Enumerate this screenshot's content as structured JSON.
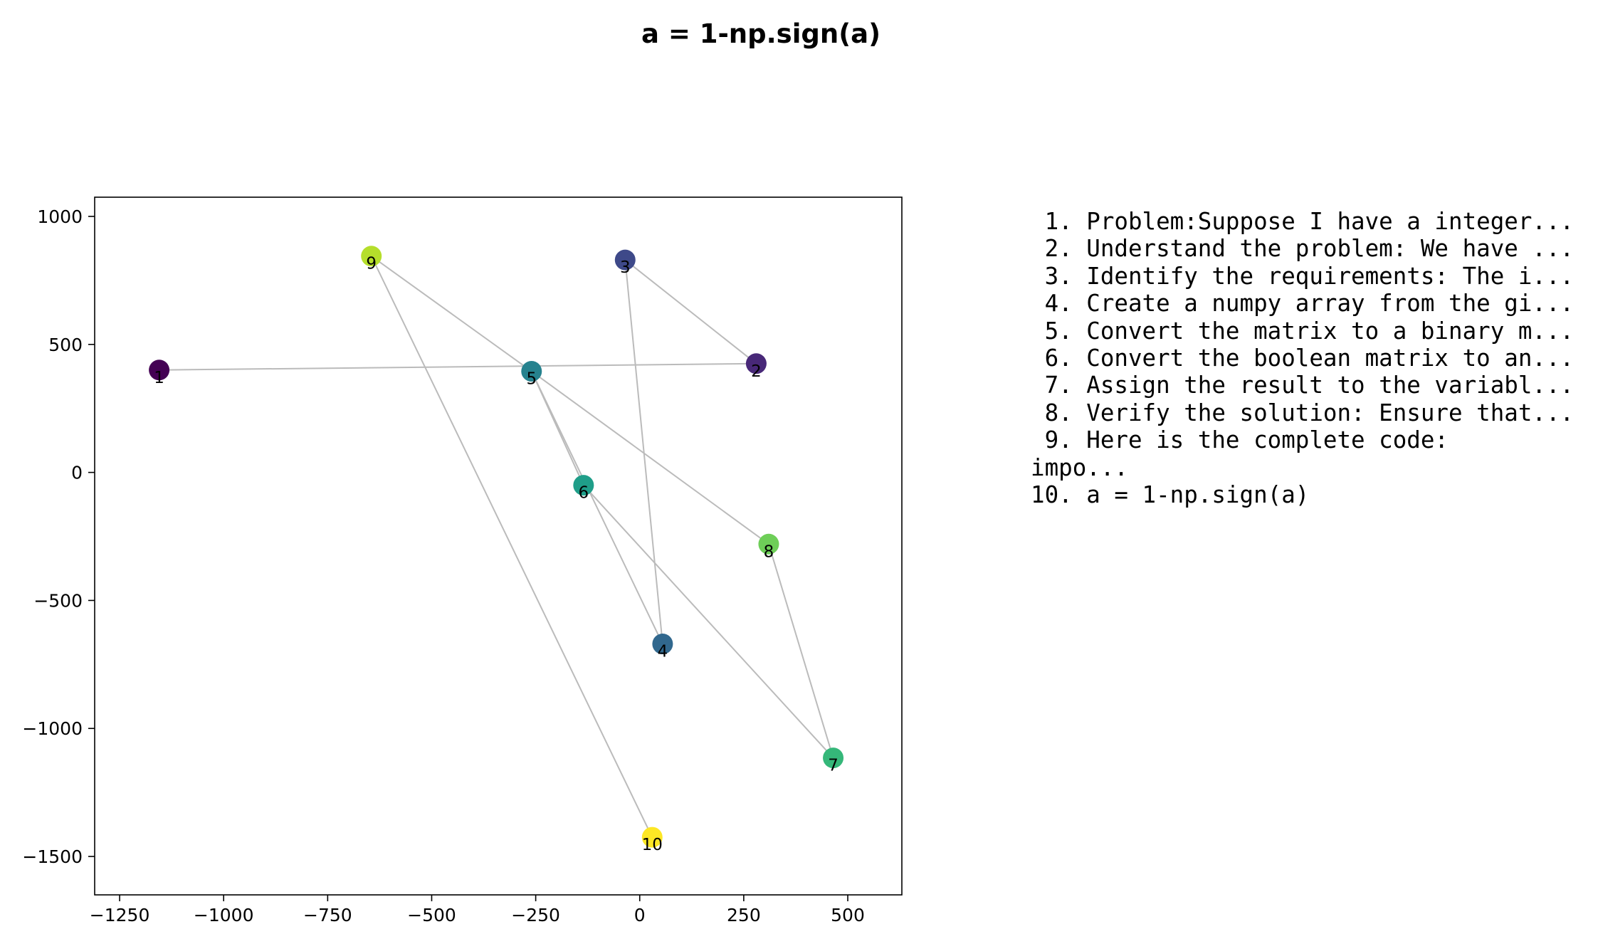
{
  "chart_data": {
    "type": "scatter",
    "title": "a = 1-np.sign(a)",
    "xlabel": "",
    "ylabel": "",
    "xlim": [
      -1310,
      630
    ],
    "ylim": [
      -1650,
      1075
    ],
    "x_ticks": [
      -1250,
      -1000,
      -750,
      -500,
      -250,
      0,
      250,
      500
    ],
    "y_ticks": [
      1000,
      500,
      0,
      -500,
      -1000,
      -1500
    ],
    "x_tick_labels": [
      "−1250",
      "−1000",
      "−750",
      "−500",
      "−250",
      "0",
      "250",
      "500"
    ],
    "y_tick_labels": [
      "1000",
      "500",
      "0",
      "−500",
      "−1000",
      "−1500"
    ],
    "grid": false,
    "colormap": "viridis",
    "points": [
      {
        "label": "1",
        "x": -1155,
        "y": 400,
        "color": "#440154"
      },
      {
        "label": "2",
        "x": 280,
        "y": 425,
        "color": "#482878"
      },
      {
        "label": "3",
        "x": -35,
        "y": 830,
        "color": "#3e4989"
      },
      {
        "label": "4",
        "x": 55,
        "y": -670,
        "color": "#31688e"
      },
      {
        "label": "5",
        "x": -260,
        "y": 395,
        "color": "#26828e"
      },
      {
        "label": "6",
        "x": -135,
        "y": -50,
        "color": "#1f9e89"
      },
      {
        "label": "7",
        "x": 465,
        "y": -1115,
        "color": "#35b779"
      },
      {
        "label": "8",
        "x": 310,
        "y": -280,
        "color": "#6ece58"
      },
      {
        "label": "9",
        "x": -645,
        "y": 845,
        "color": "#b5de2b"
      },
      {
        "label": "10",
        "x": 30,
        "y": -1425,
        "color": "#fde725"
      }
    ],
    "edges": [
      [
        1,
        2
      ],
      [
        2,
        3
      ],
      [
        3,
        4
      ],
      [
        4,
        5
      ],
      [
        5,
        6
      ],
      [
        6,
        7
      ],
      [
        7,
        8
      ],
      [
        8,
        5
      ],
      [
        5,
        9
      ],
      [
        9,
        10
      ]
    ],
    "edge_color": "#bbbbbb",
    "legend_items": [
      " 1. Problem:Suppose I have a integer...",
      " 2. Understand the problem: We have ...",
      " 3. Identify the requirements: The i...",
      " 4. Create a numpy array from the gi...",
      " 5. Convert the matrix to a binary m...",
      " 6. Convert the boolean matrix to an...",
      " 7. Assign the result to the variabl...",
      " 8. Verify the solution: Ensure that...",
      " 9. Here is the complete code:\nimpo...",
      "10. a = 1-np.sign(a)"
    ],
    "legend_placement": "right"
  }
}
